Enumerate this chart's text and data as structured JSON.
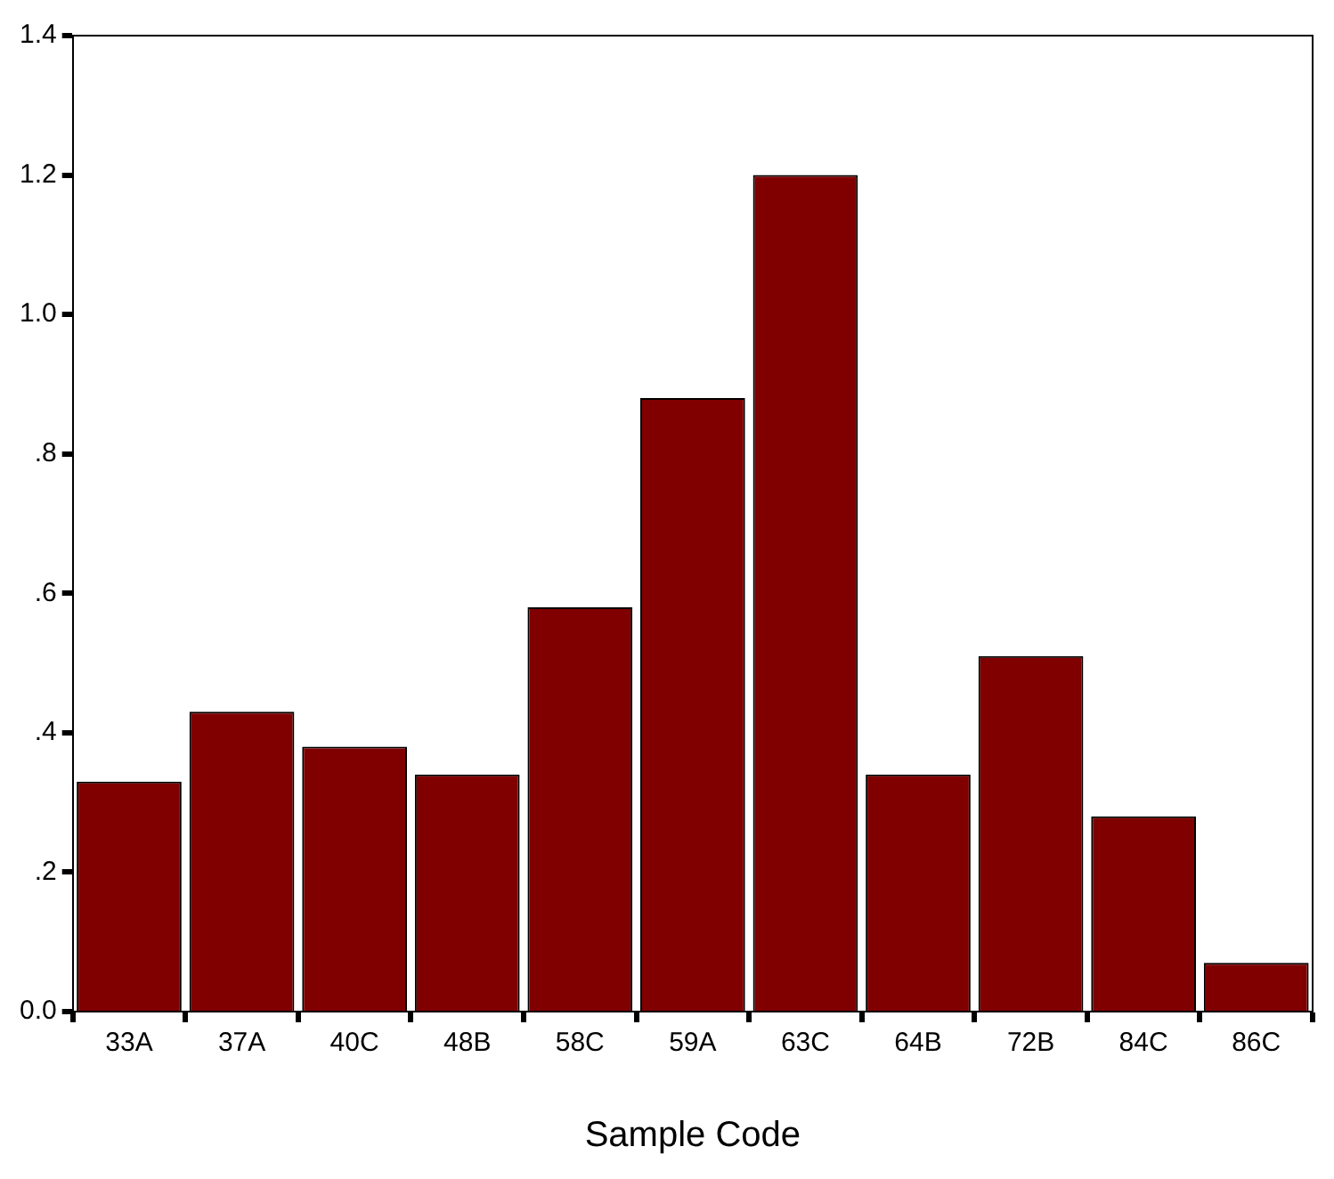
{
  "chart_data": {
    "type": "bar",
    "xlabel": "Sample Code",
    "categories": [
      "33A",
      "37A",
      "40C",
      "48B",
      "58C",
      "59A",
      "63C",
      "64B",
      "72B",
      "84C",
      "86C"
    ],
    "values": [
      0.33,
      0.43,
      0.38,
      0.34,
      0.58,
      0.88,
      1.2,
      0.34,
      0.51,
      0.28,
      0.07
    ],
    "color": "#800000",
    "ylim": [
      0,
      1.4
    ],
    "yticks": [
      {
        "value": 0,
        "label": "0.0"
      },
      {
        "value": 0.2,
        "label": ".2"
      },
      {
        "value": 0.4,
        "label": ".4"
      },
      {
        "value": 0.6,
        "label": ".6"
      },
      {
        "value": 0.8,
        "label": ".8"
      },
      {
        "value": 1.0,
        "label": "1.0"
      },
      {
        "value": 1.2,
        "label": "1.2"
      },
      {
        "value": 1.4,
        "label": "1.4"
      }
    ],
    "grid": false,
    "legend": false
  }
}
